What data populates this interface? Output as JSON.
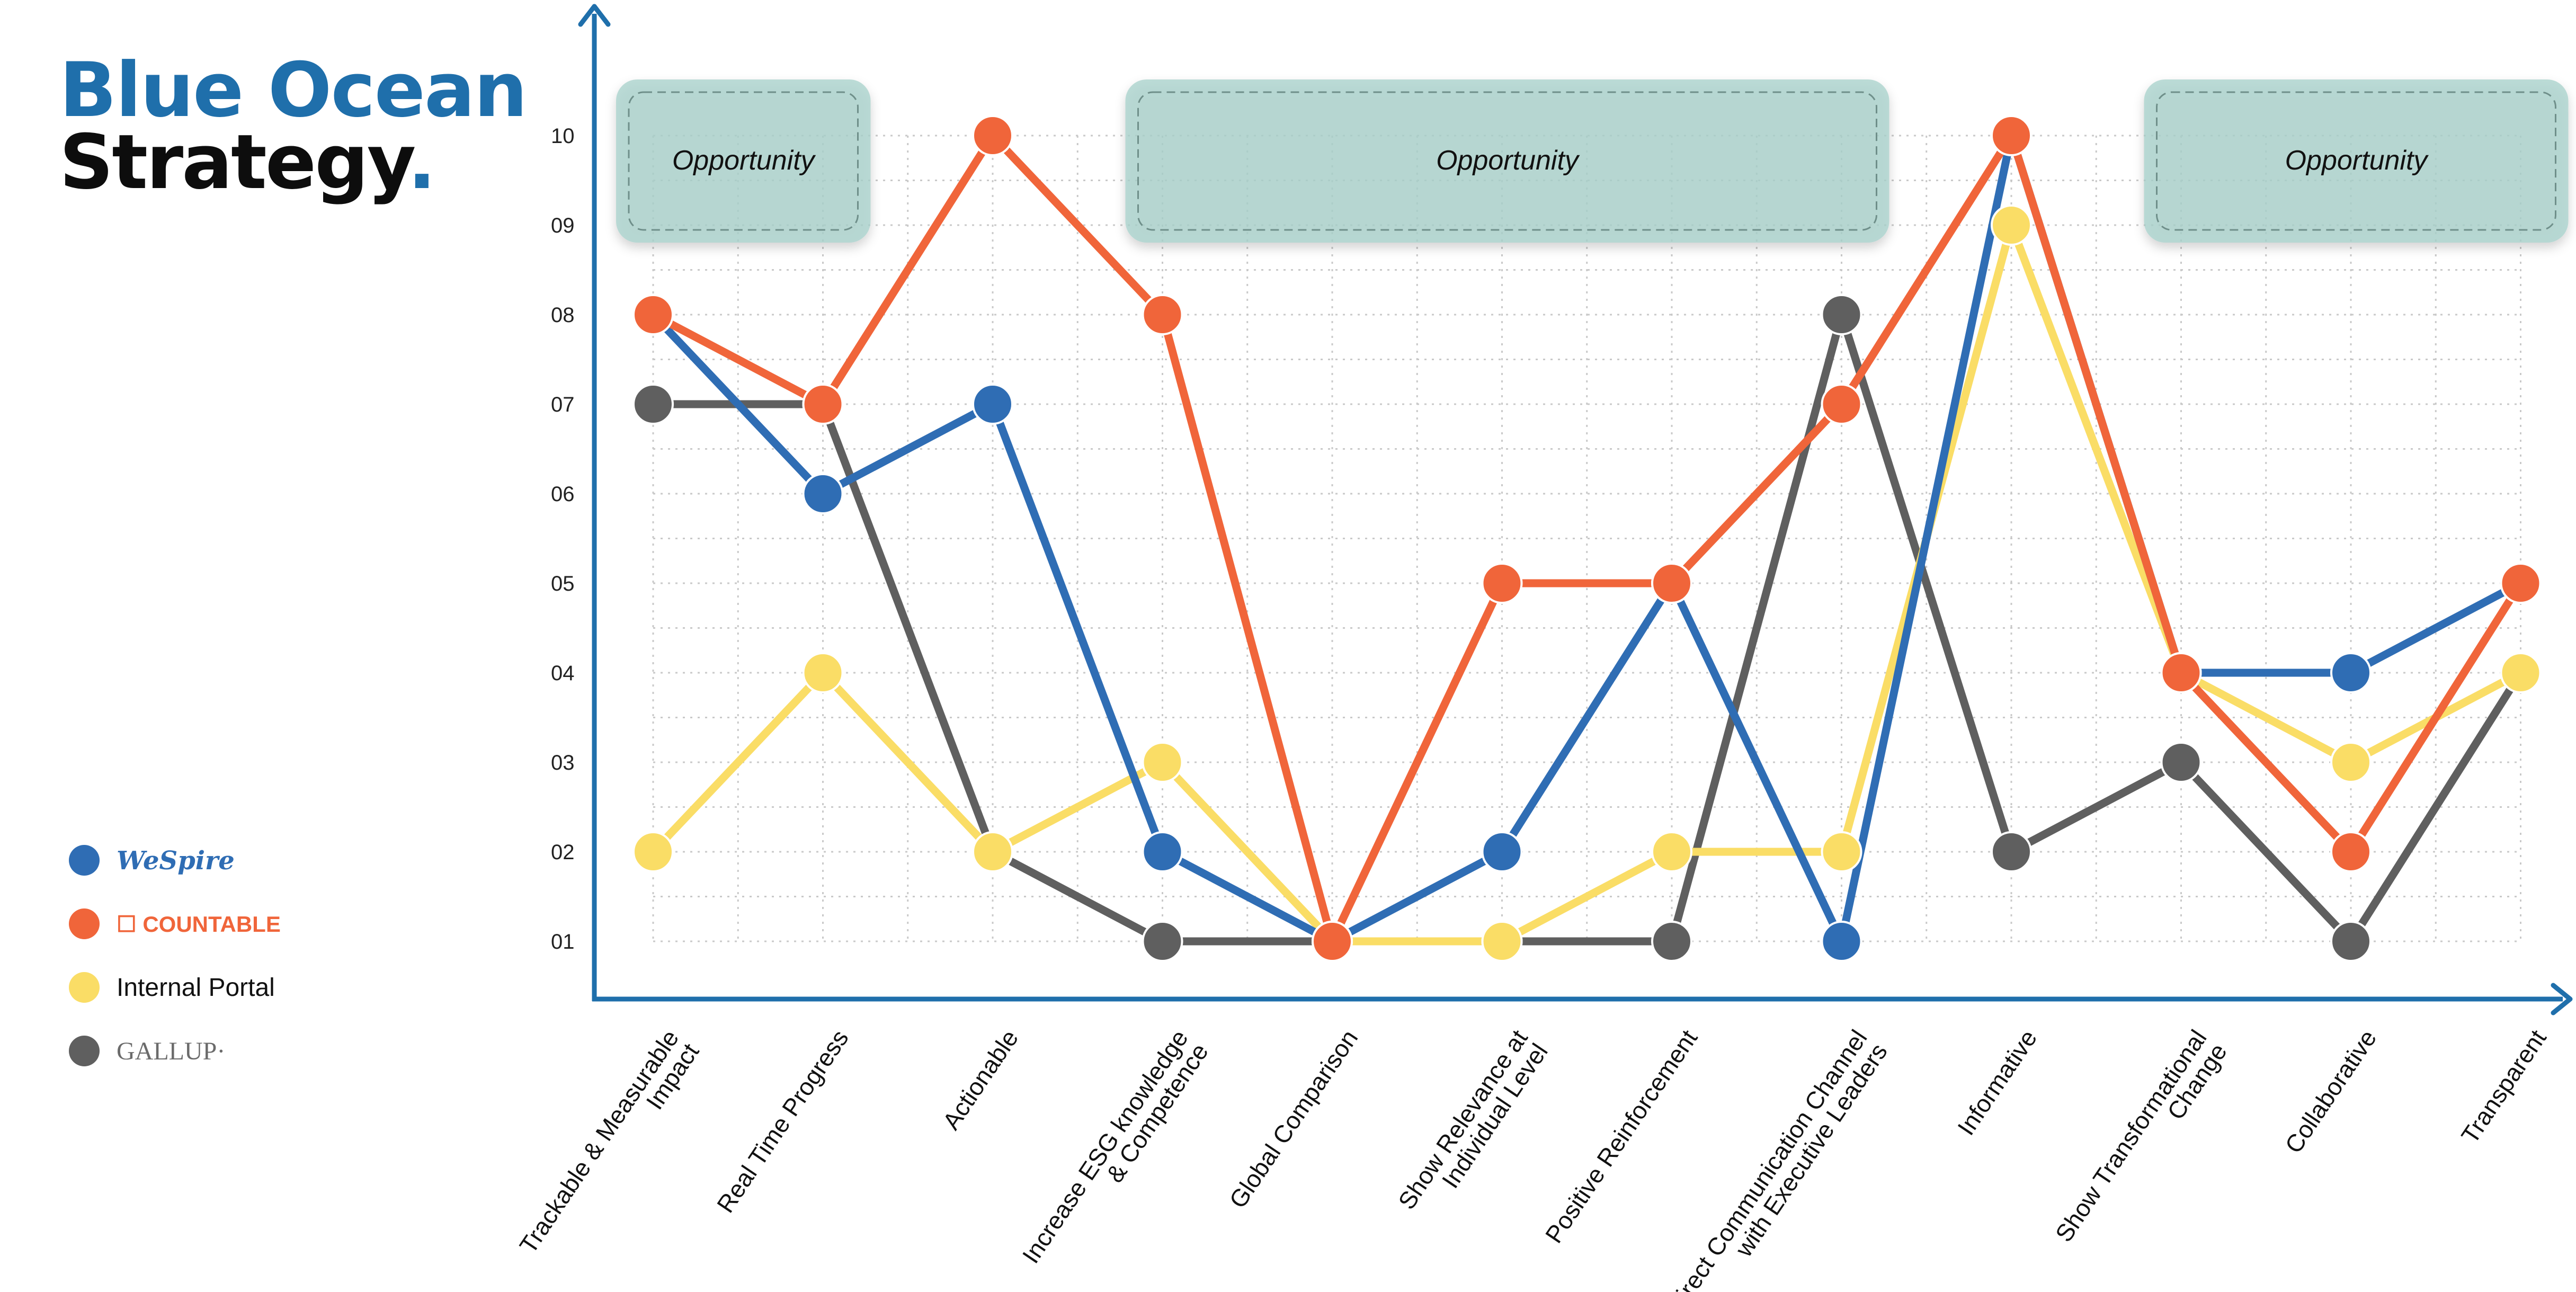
{
  "brand": {
    "line1": "Blue Ocean",
    "line2": "Strategy",
    "dot": "."
  },
  "legend": [
    {
      "label": "WeSpire",
      "color": "#2f6db4",
      "text_color": "#2f6db4"
    },
    {
      "label": "☐ COUNTABLE",
      "color": "#f0653a",
      "text_color": "#f0653a"
    },
    {
      "label": "Internal Portal",
      "color": "#fadd66",
      "text_color": "#111111"
    },
    {
      "label": "GALLUP·",
      "color": "#5f5f5f",
      "text_color": "#6b6b6b"
    }
  ],
  "chart_data": {
    "type": "line",
    "categories": [
      [
        "Trackable & Measurable",
        "Impact"
      ],
      [
        "Real Time Progress"
      ],
      [
        "Actionable"
      ],
      [
        "Increase ESG knowledge",
        "& Competence"
      ],
      [
        "Global Comparison"
      ],
      [
        "Show Relevance at",
        "Individual Level"
      ],
      [
        "Positive Reinforcement"
      ],
      [
        "Direct Communication Channel",
        "with Executive Leaders"
      ],
      [
        "Informative"
      ],
      [
        "Show Transformational",
        "Change"
      ],
      [
        "Collaborative"
      ],
      [
        "Transparent"
      ]
    ],
    "yticks": [
      "01",
      "02",
      "03",
      "04",
      "05",
      "06",
      "07",
      "08",
      "09",
      "10"
    ],
    "ylim": [
      0,
      10
    ],
    "grid": true,
    "series": [
      {
        "name": "GALLUP",
        "color": "#5f5f5f",
        "values": [
          7,
          7,
          2,
          1,
          1,
          1,
          1,
          8,
          2,
          3,
          1,
          4
        ]
      },
      {
        "name": "Internal Portal",
        "color": "#fadd66",
        "values": [
          2,
          4,
          2,
          3,
          1,
          1,
          2,
          2,
          9,
          4,
          3,
          4
        ]
      },
      {
        "name": "WeSpire",
        "color": "#2f6db4",
        "values": [
          8,
          6,
          7,
          2,
          1,
          2,
          5,
          1,
          10,
          4,
          4,
          5
        ]
      },
      {
        "name": "COUNTABLE",
        "color": "#f0653a",
        "values": [
          8,
          7,
          10,
          8,
          1,
          5,
          5,
          7,
          10,
          4,
          2,
          5
        ]
      }
    ],
    "opportunities": [
      {
        "label": "Opportunity",
        "from": 0,
        "to": 1
      },
      {
        "label": "Opportunity",
        "from": 3,
        "to": 7
      },
      {
        "label": "Opportunity",
        "from": 9,
        "to": 11
      }
    ]
  }
}
